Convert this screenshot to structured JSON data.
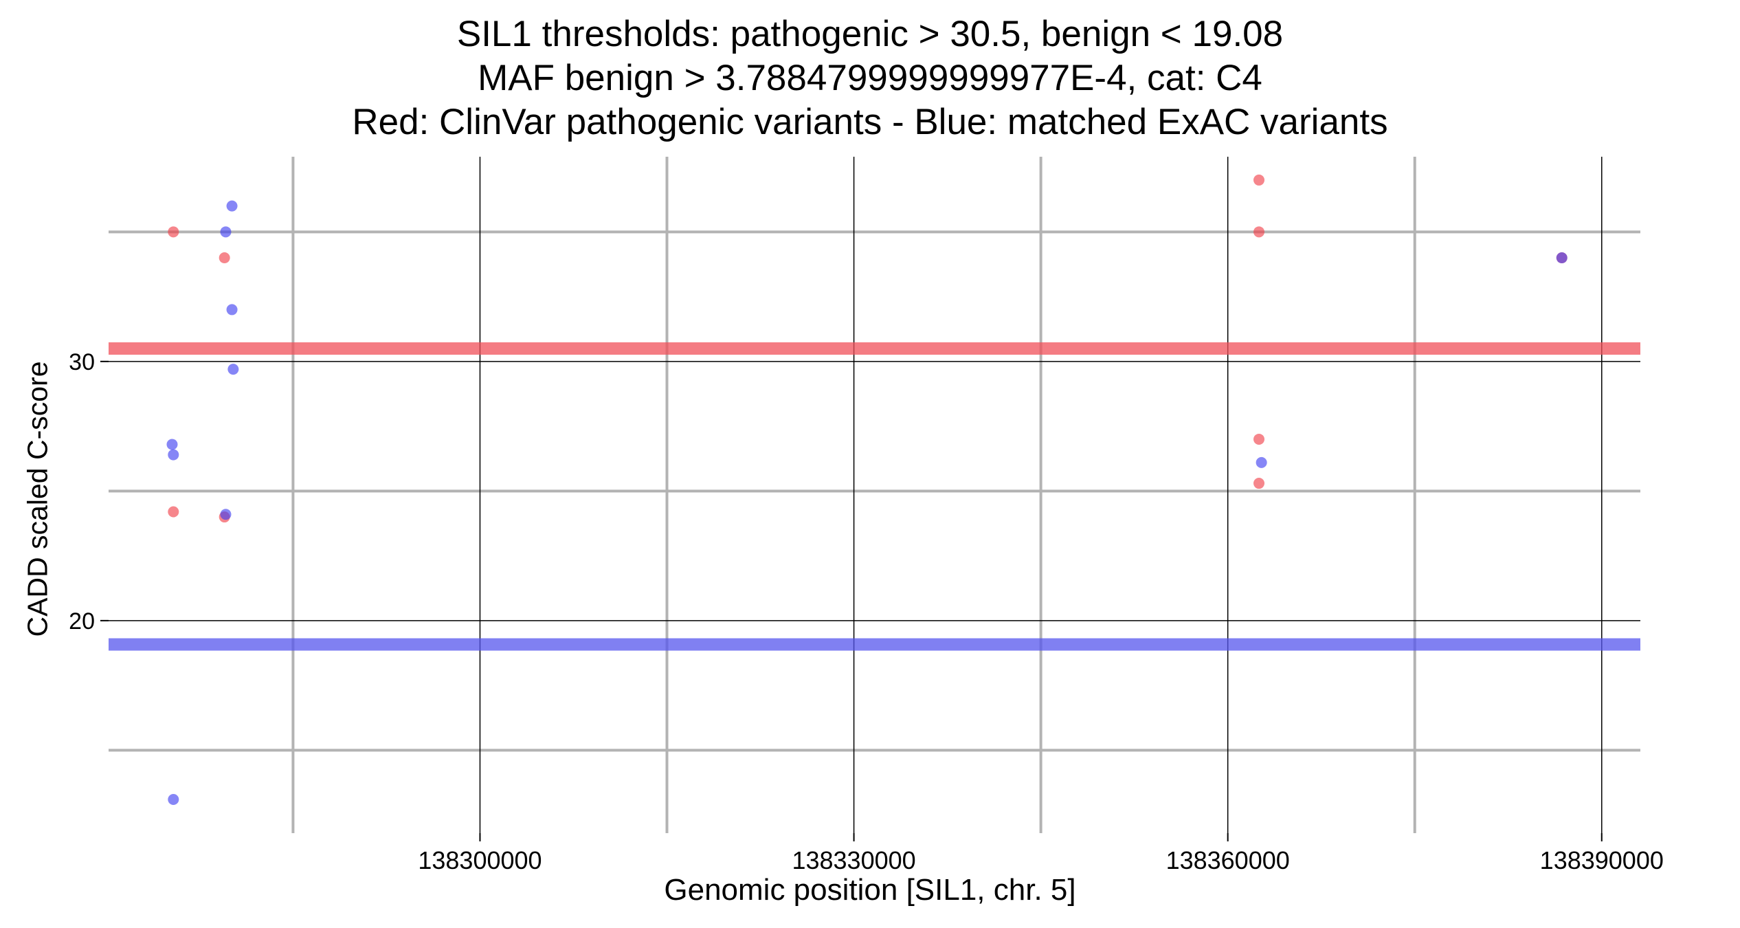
{
  "chart_data": {
    "type": "scatter",
    "title_lines": [
      "SIL1 thresholds: pathogenic > 30.5, benign < 19.08",
      "MAF benign > 3.7884799999999977E-4, cat: C4",
      "Red: ClinVar pathogenic variants - Blue: matched ExAC variants"
    ],
    "xlabel": "Genomic position [SIL1, chr. 5]",
    "ylabel": "CADD scaled C-score",
    "xlim": [
      138270200,
      138393100
    ],
    "ylim": [
      11.8,
      37.9
    ],
    "x_ticks": [
      {
        "value": 138300000,
        "label": "138300000"
      },
      {
        "value": 138330000,
        "label": "138330000"
      },
      {
        "value": 138360000,
        "label": "138360000"
      },
      {
        "value": 138390000,
        "label": "138390000"
      }
    ],
    "y_ticks": [
      {
        "value": 20,
        "label": "20"
      },
      {
        "value": 30,
        "label": "30"
      }
    ],
    "x_minor_gridlines": [
      138285000,
      138315000,
      138345000,
      138375000
    ],
    "y_minor_gridlines": [
      15,
      25,
      35
    ],
    "grid": true,
    "thresholds": [
      {
        "value": 30.5,
        "color": "#f0505a"
      },
      {
        "value": 19.08,
        "color": "#5555ee"
      }
    ],
    "series": [
      {
        "color": "#f03c46",
        "points": [
          {
            "x": 138275400,
            "y": 35.0
          },
          {
            "x": 138275400,
            "y": 24.2
          },
          {
            "x": 138279500,
            "y": 34.0
          },
          {
            "x": 138279500,
            "y": 24.0
          },
          {
            "x": 138362500,
            "y": 37.0
          },
          {
            "x": 138362500,
            "y": 35.0
          },
          {
            "x": 138362500,
            "y": 27.0
          },
          {
            "x": 138362500,
            "y": 25.3
          },
          {
            "x": 138386800,
            "y": 34.0
          }
        ]
      },
      {
        "color": "#3c3cf0",
        "points": [
          {
            "x": 138279600,
            "y": 35.0
          },
          {
            "x": 138280100,
            "y": 36.0
          },
          {
            "x": 138280100,
            "y": 32.0
          },
          {
            "x": 138280200,
            "y": 29.7
          },
          {
            "x": 138275300,
            "y": 26.8
          },
          {
            "x": 138275400,
            "y": 26.4
          },
          {
            "x": 138279600,
            "y": 24.1
          },
          {
            "x": 138275400,
            "y": 13.1
          },
          {
            "x": 138362700,
            "y": 26.1
          },
          {
            "x": 138386800,
            "y": 34.0
          }
        ]
      }
    ]
  }
}
